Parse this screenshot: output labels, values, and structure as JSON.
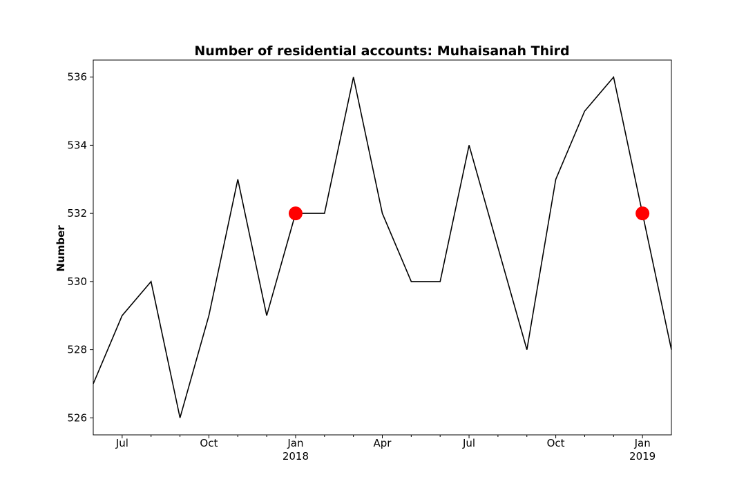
{
  "chart_data": {
    "type": "line",
    "title": "Number of residential accounts: Muhaisanah Third",
    "xlabel": "",
    "ylabel": "Number",
    "x": [
      "2017-06",
      "2017-07",
      "2017-08",
      "2017-09",
      "2017-10",
      "2017-11",
      "2017-12",
      "2018-01",
      "2018-02",
      "2018-03",
      "2018-04",
      "2018-05",
      "2018-06",
      "2018-07",
      "2018-08",
      "2018-09",
      "2018-10",
      "2018-11",
      "2018-12",
      "2019-01",
      "2019-02"
    ],
    "series": [
      {
        "values": [
          527,
          529,
          530,
          526,
          529,
          533,
          529,
          532,
          532,
          536,
          532,
          530,
          530,
          534,
          531,
          528,
          533,
          535,
          536,
          532,
          528
        ],
        "color": "#000000"
      }
    ],
    "highlights": [
      {
        "x": "2018-01",
        "y": 532
      },
      {
        "x": "2019-01",
        "y": 532
      }
    ],
    "highlight_color": "#ff0000",
    "xlim": [
      "2017-06",
      "2019-02"
    ],
    "ylim": [
      525.5,
      536.5
    ],
    "yticks": [
      526,
      528,
      530,
      532,
      534,
      536
    ],
    "xticks": [
      {
        "x": "2017-07",
        "label": "Jul",
        "sublabel": ""
      },
      {
        "x": "2017-10",
        "label": "Oct",
        "sublabel": ""
      },
      {
        "x": "2018-01",
        "label": "Jan",
        "sublabel": "2018"
      },
      {
        "x": "2018-04",
        "label": "Apr",
        "sublabel": ""
      },
      {
        "x": "2018-07",
        "label": "Jul",
        "sublabel": ""
      },
      {
        "x": "2018-10",
        "label": "Oct",
        "sublabel": ""
      },
      {
        "x": "2019-01",
        "label": "Jan",
        "sublabel": "2019"
      }
    ],
    "minor_xticks": [
      "2017-08",
      "2017-09",
      "2017-11",
      "2017-12",
      "2018-02",
      "2018-03",
      "2018-05",
      "2018-06",
      "2018-08",
      "2018-09",
      "2018-11",
      "2018-12"
    ],
    "grid": false,
    "legend": "none"
  }
}
